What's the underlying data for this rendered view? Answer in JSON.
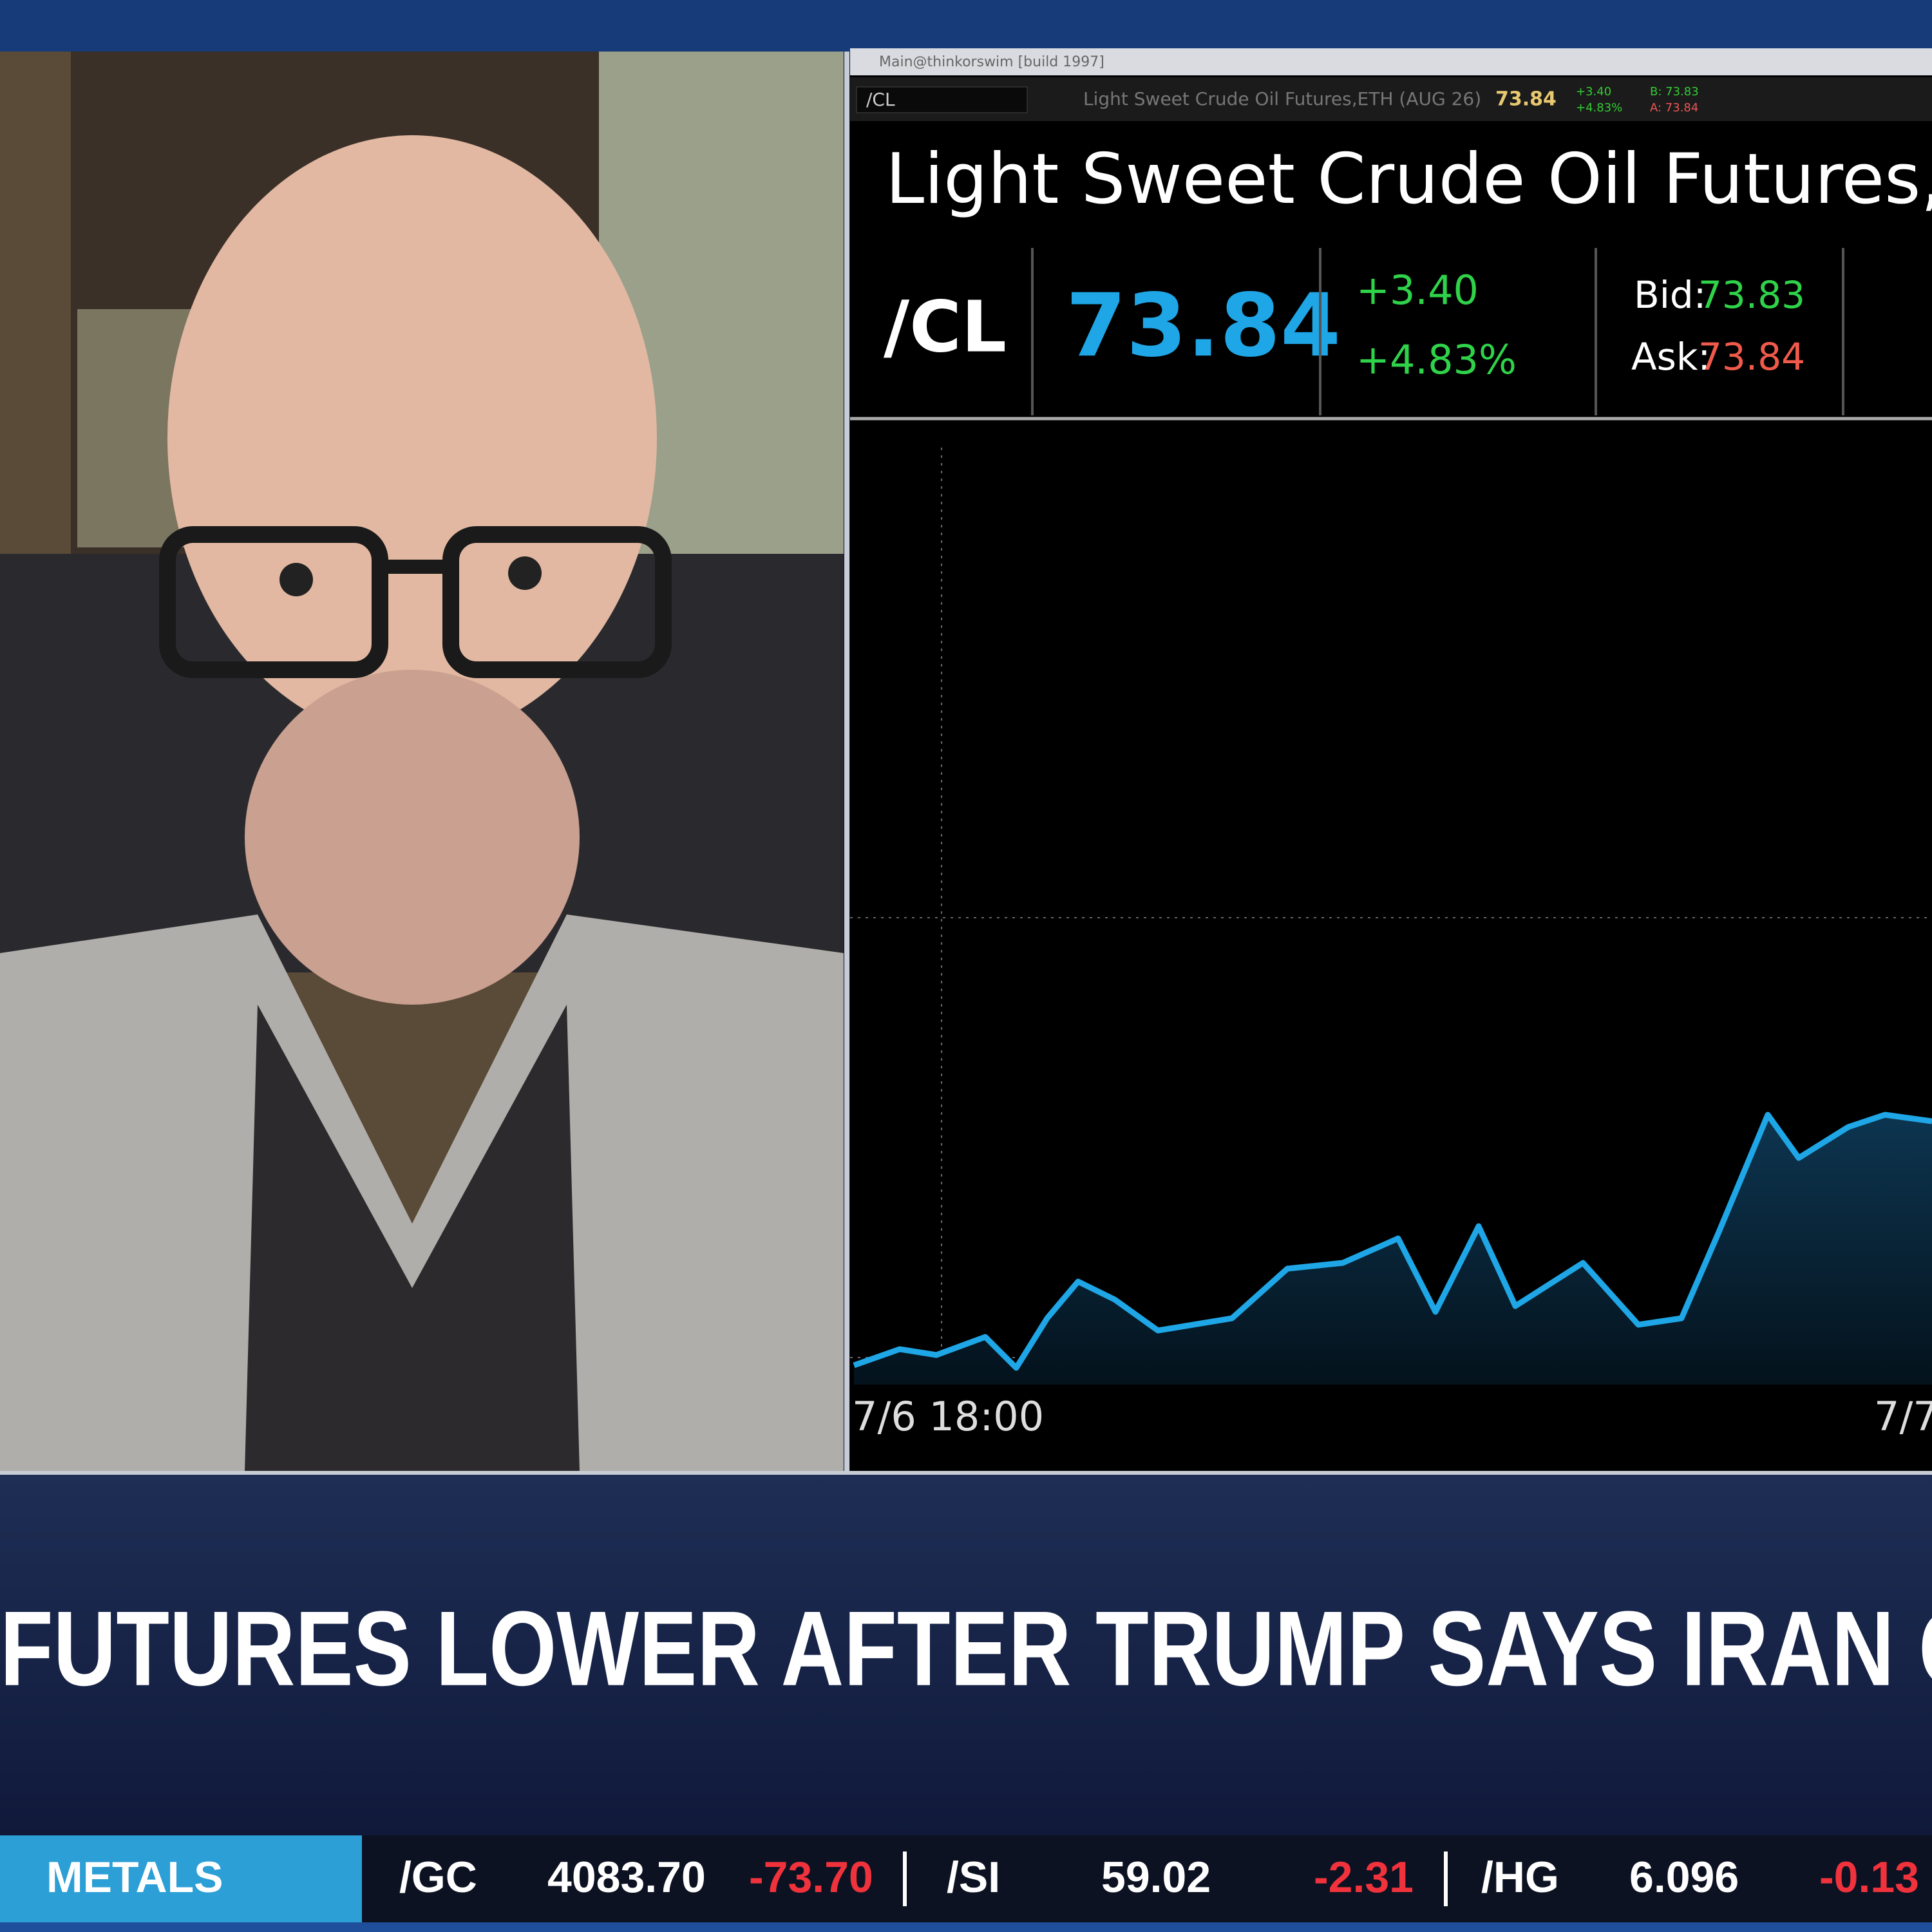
{
  "window": {
    "title": "Main@thinkorswim [build 1997]",
    "symbol_field": "/CL",
    "header": {
      "description": "Light Sweet Crude Oil Futures,ETH (AUG 26)",
      "last": "73.84",
      "change": "+3.40",
      "percent": "+4.83%",
      "bid": "B: 73.83",
      "ask": "A: 73.84"
    }
  },
  "quote": {
    "title": "Light Sweet Crude Oil Futures,ET",
    "symbol": "/CL",
    "last": "73.84",
    "change": "+3.40",
    "percent": "+4.83%",
    "bid_label": "Bid:",
    "bid": "73.83",
    "ask_label": "Ask:",
    "ask": "73.84"
  },
  "chart": {
    "time_labels": [
      "7/6 18:00",
      "7/7"
    ]
  },
  "headline": "FUTURES LOWER AFTER TRUMP SAYS IRAN CEASE",
  "ticker": {
    "section": "METALS",
    "items": [
      {
        "symbol": "/GC",
        "price": "4083.70",
        "change": "-73.70"
      },
      {
        "symbol": "/SI",
        "price": "59.02",
        "change": "-2.31"
      },
      {
        "symbol": "/HG",
        "price": "6.096",
        "change": "-0.13"
      }
    ]
  }
}
